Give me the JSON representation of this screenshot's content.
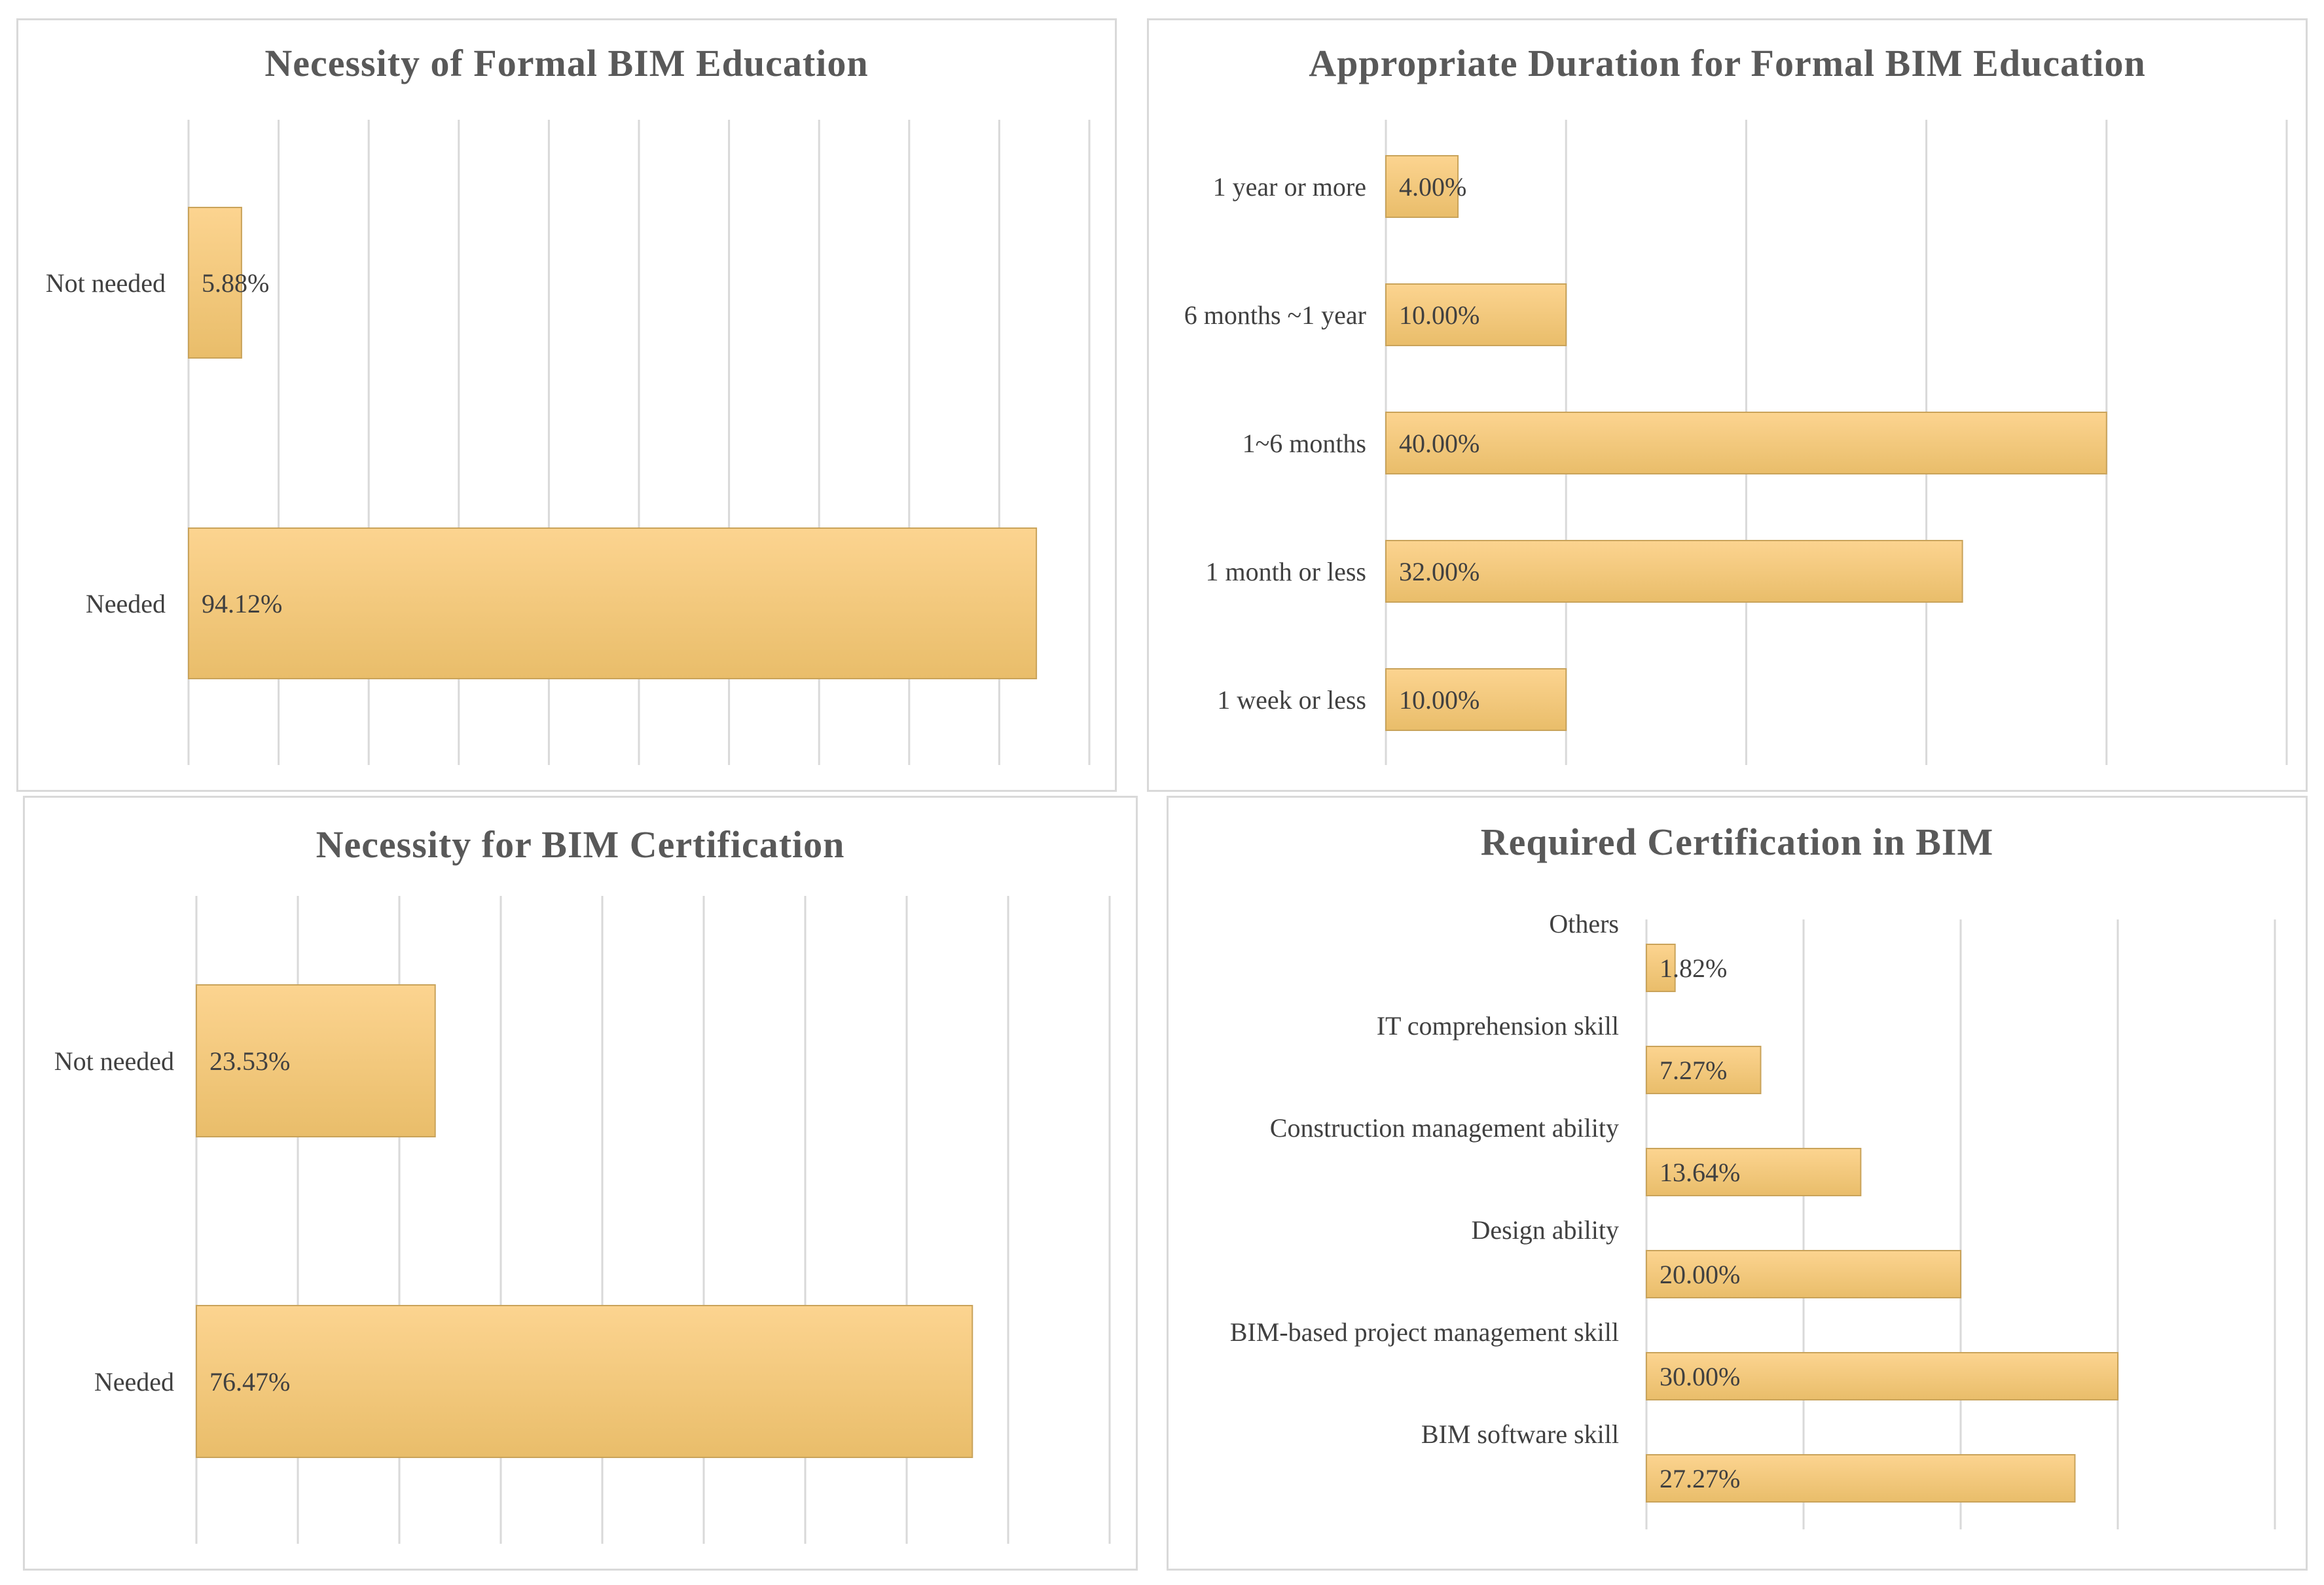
{
  "colors": {
    "bar_top": "#fcd490",
    "bar_bottom": "#e9bd6a",
    "bar_edge": "#c9a35a",
    "grid": "#d9d9d9",
    "text": "#404040",
    "title": "#595959"
  },
  "chart_data": [
    {
      "type": "bar",
      "orientation": "horizontal",
      "title": "Necessity of Formal BIM Education",
      "categories": [
        "Not needed",
        "Needed"
      ],
      "values": [
        5.88,
        94.12
      ],
      "data_labels": [
        "5.88%",
        "94.12%"
      ],
      "xlim": [
        0,
        100
      ],
      "gridlines": 11,
      "xlabel": "",
      "ylabel": ""
    },
    {
      "type": "bar",
      "orientation": "horizontal",
      "title": "Appropriate Duration for Formal BIM Education",
      "categories": [
        "1 year or more",
        "6 months ~1 year",
        "1~6 months",
        "1 month or less",
        "1 week or less"
      ],
      "values": [
        4.0,
        10.0,
        40.0,
        32.0,
        10.0
      ],
      "data_labels": [
        "4.00%",
        "10.00%",
        "40.00%",
        "32.00%",
        "10.00%"
      ],
      "xlim": [
        0,
        50
      ],
      "gridlines": 6,
      "xlabel": "",
      "ylabel": ""
    },
    {
      "type": "bar",
      "orientation": "horizontal",
      "title": "Necessity for BIM Certification",
      "categories": [
        "Not needed",
        "Needed"
      ],
      "values": [
        23.53,
        76.47
      ],
      "data_labels": [
        "23.53%",
        "76.47%"
      ],
      "xlim": [
        0,
        90
      ],
      "gridlines": 10,
      "xlabel": "",
      "ylabel": ""
    },
    {
      "type": "bar",
      "orientation": "horizontal",
      "title": "Required Certification in BIM",
      "categories": [
        "Others",
        "IT comprehension skill",
        "Construction management ability",
        "Design ability",
        "BIM-based project management skill",
        "BIM software skill"
      ],
      "values": [
        1.82,
        7.27,
        13.64,
        20.0,
        30.0,
        27.27
      ],
      "data_labels": [
        "1.82%",
        "7.27%",
        "13.64%",
        "20.00%",
        "30.00%",
        "27.27%"
      ],
      "xlim": [
        0,
        40
      ],
      "gridlines": 5,
      "category_label_position": "above-bar",
      "xlabel": "",
      "ylabel": ""
    }
  ]
}
